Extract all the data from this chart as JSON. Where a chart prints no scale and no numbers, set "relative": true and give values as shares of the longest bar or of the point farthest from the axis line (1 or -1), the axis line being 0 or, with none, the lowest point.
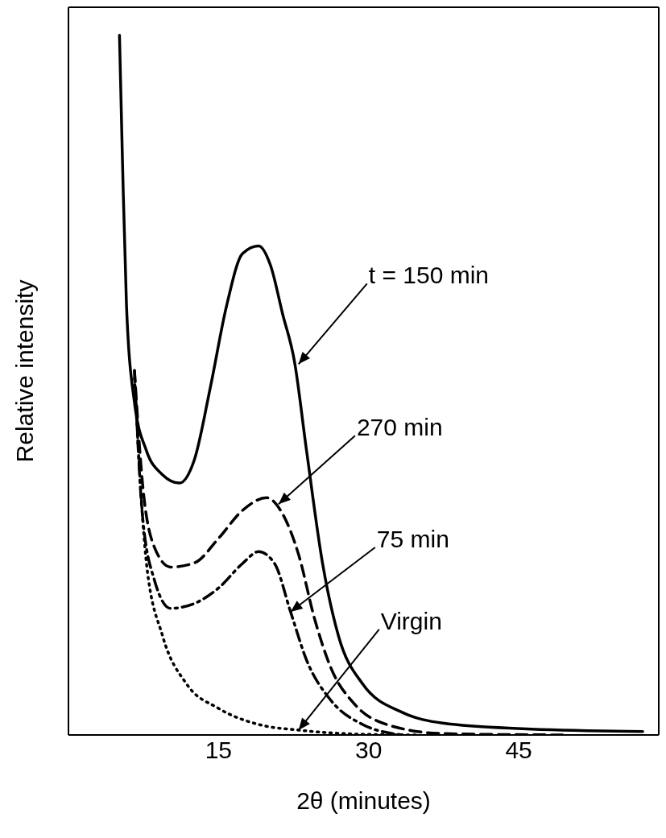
{
  "chart_data": {
    "type": "line",
    "relative": true,
    "xlabel": "2θ (minutes)",
    "ylabel": "Relative intensity",
    "xlim": [
      0,
      59
    ],
    "xticks": [
      15,
      30,
      45
    ],
    "marker": "none",
    "annotations": [
      {
        "text": "t = 150 min",
        "x": 23,
        "y": 0.53
      },
      {
        "text": "270 min",
        "x": 21,
        "y": 0.33
      },
      {
        "text": "75 min",
        "x": 22.2,
        "y": 0.176
      },
      {
        "text": "Virgin",
        "x": 23,
        "y": 0.007
      }
    ],
    "series": [
      {
        "color": "#000000",
        "line_style": "solid",
        "x": [
          5.1,
          5.4,
          5.8,
          6.6,
          7.8,
          9.4,
          11.1,
          12.6,
          14.2,
          15.8,
          17.4,
          19.0,
          20.2,
          21.4,
          22.6,
          23.8,
          25.4,
          27.0,
          29.4,
          33.4,
          37.4,
          45.4,
          57.4
        ],
        "values": [
          1.0,
          0.82,
          0.614,
          0.475,
          0.406,
          0.372,
          0.36,
          0.394,
          0.498,
          0.613,
          0.688,
          0.699,
          0.671,
          0.602,
          0.533,
          0.406,
          0.245,
          0.141,
          0.073,
          0.032,
          0.017,
          0.009,
          0.005
        ]
      },
      {
        "color": "#000000",
        "line_style": "dashed",
        "x": [
          6.6,
          7.4,
          8.6,
          10.2,
          12.6,
          15.0,
          17.4,
          19.8,
          21.4,
          23.0,
          24.6,
          26.2,
          28.6,
          31.8,
          37.4,
          49.4
        ],
        "values": [
          0.521,
          0.36,
          0.268,
          0.24,
          0.246,
          0.281,
          0.321,
          0.339,
          0.316,
          0.258,
          0.166,
          0.097,
          0.044,
          0.015,
          0.002,
          0
        ]
      },
      {
        "color": "#000000",
        "line_style": "dashdot",
        "x": [
          6.6,
          7.4,
          8.6,
          10.2,
          12.6,
          15.0,
          17.4,
          19.0,
          20.6,
          22.2,
          23.8,
          26.2,
          29.4,
          33.4
        ],
        "values": [
          0.521,
          0.313,
          0.221,
          0.181,
          0.188,
          0.21,
          0.245,
          0.262,
          0.245,
          0.176,
          0.107,
          0.05,
          0.015,
          0
        ]
      },
      {
        "color": "#000000",
        "line_style": "dotted",
        "x": [
          6.6,
          7.8,
          9.4,
          11.8,
          15.0,
          19.0,
          23.0,
          29.4,
          35.0
        ],
        "values": [
          0.51,
          0.245,
          0.142,
          0.073,
          0.038,
          0.015,
          0.007,
          0.001,
          0
        ]
      }
    ]
  }
}
